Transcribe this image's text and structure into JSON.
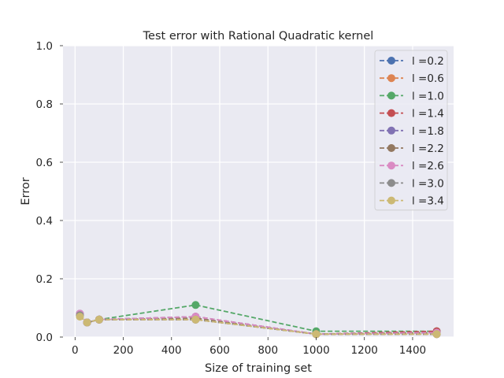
{
  "chart_data": {
    "type": "line",
    "title": "Test error with Rational Quadratic kernel",
    "xlabel": "Size of training set",
    "ylabel": "Error",
    "xlim": [
      -50,
      1570
    ],
    "ylim": [
      0,
      1.0
    ],
    "xticks": [
      0,
      200,
      400,
      600,
      800,
      1000,
      1200,
      1400
    ],
    "yticks": [
      0.0,
      0.2,
      0.4,
      0.6,
      0.8,
      1.0
    ],
    "ytick_labels": [
      "0.0",
      "0.2",
      "0.4",
      "0.6",
      "0.8",
      "1.0"
    ],
    "x": [
      20,
      50,
      100,
      500,
      1000,
      1500
    ],
    "grid": true,
    "legend_position": "top-right",
    "series": [
      {
        "name": "l =0.2",
        "color": "#4c72b0",
        "values": [
          0.075,
          0.05,
          0.06,
          0.06,
          0.01,
          0.01
        ]
      },
      {
        "name": "l =0.6",
        "color": "#dd8452",
        "values": [
          0.075,
          0.05,
          0.06,
          0.06,
          0.01,
          0.01
        ]
      },
      {
        "name": "l =1.0",
        "color": "#55a868",
        "values": [
          0.075,
          0.05,
          0.06,
          0.11,
          0.02,
          0.02
        ]
      },
      {
        "name": "l =1.4",
        "color": "#c44e52",
        "values": [
          0.08,
          0.05,
          0.06,
          0.07,
          0.01,
          0.02
        ]
      },
      {
        "name": "l =1.8",
        "color": "#8172b3",
        "values": [
          0.08,
          0.05,
          0.06,
          0.07,
          0.01,
          0.015
        ]
      },
      {
        "name": "l =2.2",
        "color": "#937860",
        "values": [
          0.075,
          0.05,
          0.06,
          0.065,
          0.01,
          0.015
        ]
      },
      {
        "name": "l =2.6",
        "color": "#da8bc3",
        "values": [
          0.08,
          0.05,
          0.06,
          0.07,
          0.01,
          0.015
        ]
      },
      {
        "name": "l =3.0",
        "color": "#8c8c8c",
        "values": [
          0.075,
          0.05,
          0.06,
          0.06,
          0.01,
          0.01
        ]
      },
      {
        "name": "l =3.4",
        "color": "#ccb974",
        "values": [
          0.07,
          0.05,
          0.06,
          0.06,
          0.01,
          0.01
        ]
      }
    ]
  }
}
